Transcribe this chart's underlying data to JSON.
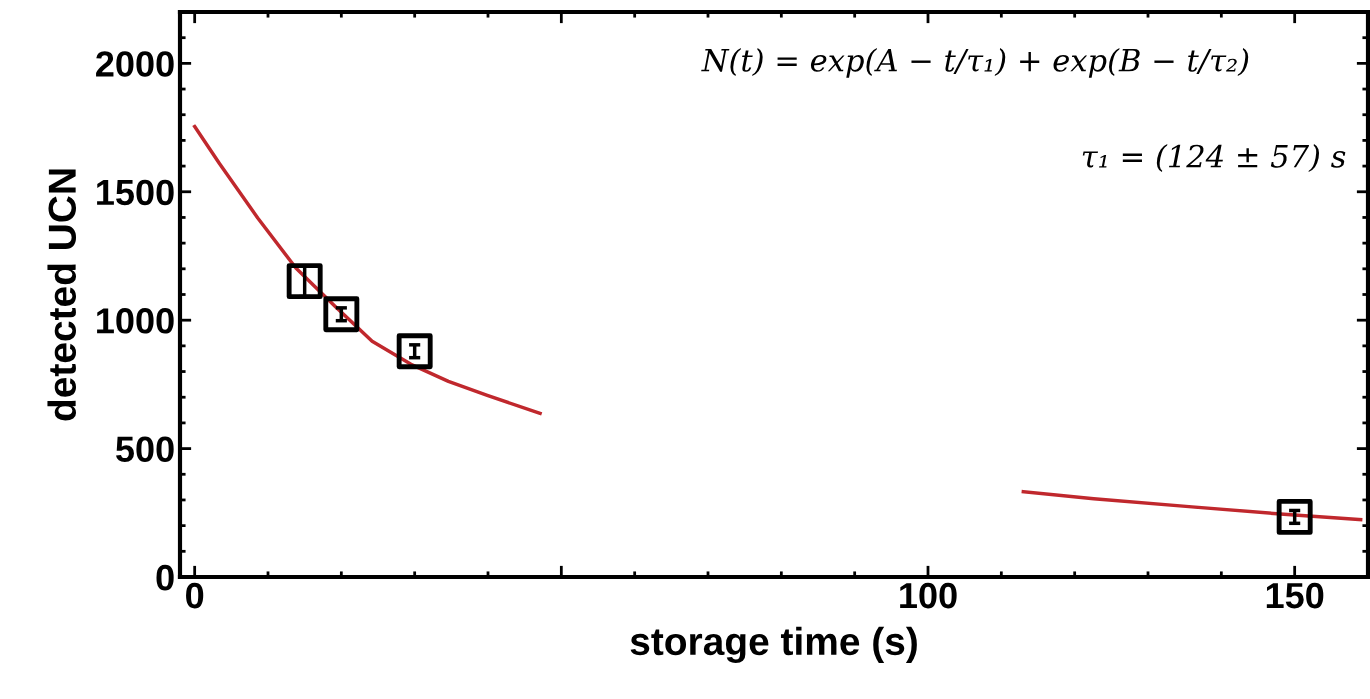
{
  "chart_data": {
    "type": "scatter",
    "xlabel": "storage time (s)",
    "ylabel": "detected UCN",
    "xlim": [
      -2,
      160
    ],
    "ylim": [
      0,
      2200
    ],
    "xticks": [
      0,
      {
        "value": 50,
        "label": null
      },
      100,
      150
    ],
    "yticks": [
      0,
      500,
      1000,
      1500,
      2000
    ],
    "grid": false,
    "marker": "square",
    "series": [
      {
        "color": "#000000",
        "x": [
          15,
          20,
          30,
          150
        ],
        "values": [
          1152,
          1023,
          879,
          234
        ],
        "errors": [
          60,
          25,
          25,
          25
        ]
      },
      {
        "type": "line",
        "color": "#c0282d",
        "marker": "none",
        "line_style": "solid",
        "x": [
          0,
          3.4,
          8.6,
          13.8,
          19.1,
          24.2,
          29.5,
          34.6,
          39.9,
          47.1,
          80,
          113,
          122.6,
          136,
          149.5,
          159
        ],
        "values": [
          1754,
          1609,
          1398,
          1203,
          1055,
          918,
          828,
          762,
          707,
          637,
          null,
          332,
          305,
          273,
          242,
          223
        ]
      }
    ],
    "annotations": [
      "N(t) = exp(A − t/τ₁) + exp(B − t/τ₂)",
      "τ₁ = (124 ± 57) s"
    ]
  }
}
